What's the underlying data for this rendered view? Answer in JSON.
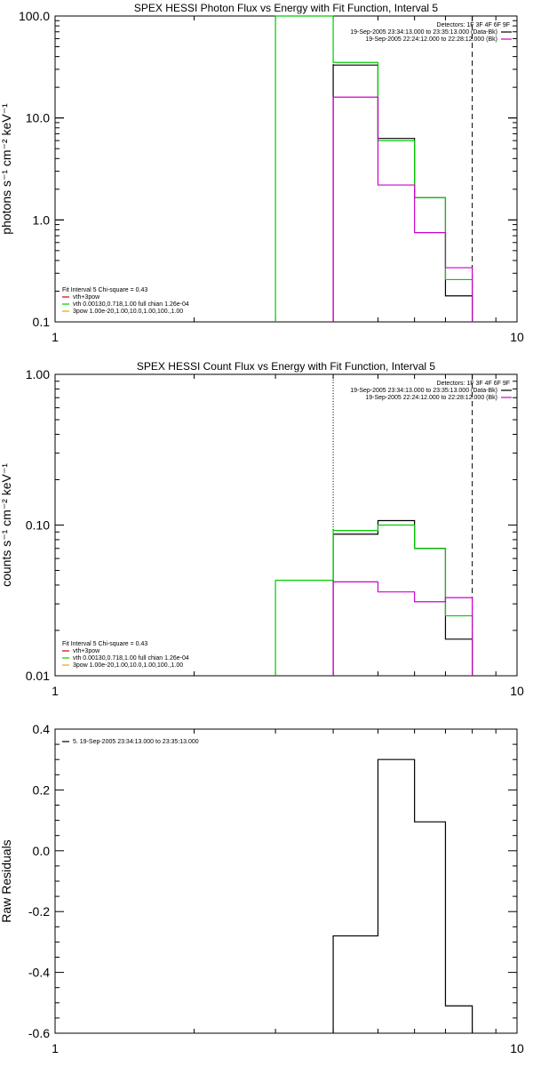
{
  "chart_data": [
    {
      "type": "line",
      "title": "SPEX HESSI Photon Flux vs Energy with Fit Function, Interval 5",
      "ylabel": "photons s⁻¹ cm⁻² keV⁻¹",
      "xlabel": "",
      "xscale": "log",
      "yscale": "log",
      "xlim": [
        1,
        10
      ],
      "ylim": [
        0.1,
        100
      ],
      "xticks": [
        "1",
        "10"
      ],
      "yticks": [
        "0.1",
        "1.0",
        "10.0",
        "100.0"
      ],
      "legend_right": {
        "placement": "top-right",
        "header": "Detectors: 1F 3F 4F 6F 9F",
        "entries": [
          {
            "text": "19-Sep-2005 23:34:13.000 to 23:35:13.000 (Data-Bk)",
            "color": "#000000"
          },
          {
            "text": "19-Sep-2005 22:24:12.000 to 22:28:12.000 (Bk)",
            "color": "#cc00cc"
          }
        ]
      },
      "legend_left": {
        "placement": "bottom-left",
        "header": "Fit Interval  5   Chi-square = 0.43",
        "entries": [
          {
            "text": "vth+3pow",
            "color": "#cc0000"
          },
          {
            "text": "vth 0.00130,0.718,1.00   full chian 1.26e-04",
            "color": "#00cc00"
          },
          {
            "text": "3pow 1.00e-20,1.00,10.0,1.00,100.,1.00",
            "color": "#ddaa00"
          }
        ]
      },
      "vlines": [
        {
          "x": 4.0,
          "style": "dotted",
          "color": "#000000"
        },
        {
          "x": 8.0,
          "style": "dashed",
          "color": "#000000"
        }
      ],
      "series": [
        {
          "color": "#000000",
          "edges": [
            4,
            5,
            6,
            7,
            8
          ],
          "values": [
            33,
            6.3,
            1.65,
            0.18
          ]
        },
        {
          "color": "#00cc00",
          "edges": [
            3,
            4,
            5,
            6,
            7,
            8
          ],
          "values": [
            100,
            35,
            6.0,
            1.65,
            0.26
          ]
        },
        {
          "color": "#cc00cc",
          "edges": [
            4,
            5,
            6,
            7,
            8
          ],
          "values": [
            16,
            2.2,
            0.75,
            0.34
          ]
        }
      ]
    },
    {
      "type": "line",
      "title": "SPEX HESSI Count Flux vs Energy with Fit Function, Interval 5",
      "ylabel": "counts s⁻¹ cm⁻² keV⁻¹",
      "xlabel": "",
      "xscale": "log",
      "yscale": "log",
      "xlim": [
        1,
        10
      ],
      "ylim": [
        0.01,
        1
      ],
      "xticks": [
        "1",
        "10"
      ],
      "yticks": [
        "0.01",
        "0.10",
        "1.00"
      ],
      "legend_right": {
        "placement": "top-right",
        "header": "Detectors: 1F 3F 4F 6F 9F",
        "entries": [
          {
            "text": "19-Sep-2005 23:34:13.000 to 23:35:13.000 (Data-Bk)",
            "color": "#000000"
          },
          {
            "text": "19-Sep-2005 22:24:12.000 to 22:28:12.000 (Bk)",
            "color": "#cc00cc"
          }
        ]
      },
      "legend_left": {
        "placement": "bottom-left",
        "header": "Fit Interval  5   Chi-square = 0.43",
        "entries": [
          {
            "text": "vth+3pow",
            "color": "#cc0000"
          },
          {
            "text": "vth 0.00130,0.718,1.00   full chian 1.26e-04",
            "color": "#00cc00"
          },
          {
            "text": "3pow 1.00e-20,1.00,10.0,1.00,100.,1.00",
            "color": "#ddaa00"
          }
        ]
      },
      "vlines": [
        {
          "x": 4.0,
          "style": "dotted",
          "color": "#000000"
        },
        {
          "x": 8.0,
          "style": "dashed",
          "color": "#000000"
        }
      ],
      "series": [
        {
          "color": "#000000",
          "edges": [
            4,
            5,
            6,
            7,
            8
          ],
          "values": [
            0.087,
            0.107,
            0.07,
            0.0175
          ]
        },
        {
          "color": "#00cc00",
          "edges": [
            3,
            4,
            5,
            6,
            7,
            8
          ],
          "values": [
            0.043,
            0.092,
            0.1,
            0.07,
            0.025
          ]
        },
        {
          "color": "#cc00cc",
          "edges": [
            4,
            5,
            6,
            7,
            8
          ],
          "values": [
            0.042,
            0.036,
            0.031,
            0.033
          ]
        }
      ]
    },
    {
      "type": "line",
      "title": "",
      "ylabel": "Raw Residuals",
      "xlabel": "",
      "xscale": "log",
      "yscale": "linear",
      "xlim": [
        1,
        10
      ],
      "ylim": [
        -0.6,
        0.4
      ],
      "xticks": [
        "1",
        "10"
      ],
      "yticks": [
        "0.4",
        "0.2",
        "0.0",
        "-0.2",
        "-0.4",
        "-0.6"
      ],
      "legend_left": {
        "placement": "top-left",
        "header": "",
        "entries": [
          {
            "text": "5. 19-Sep-2005 23:34:13.000 to 23:35:13.000",
            "color": "#000000"
          }
        ]
      },
      "vlines": [],
      "series": [
        {
          "color": "#000000",
          "edges": [
            4,
            5,
            6,
            7,
            8
          ],
          "values": [
            -0.28,
            0.3,
            0.095,
            -0.51
          ]
        }
      ]
    }
  ]
}
